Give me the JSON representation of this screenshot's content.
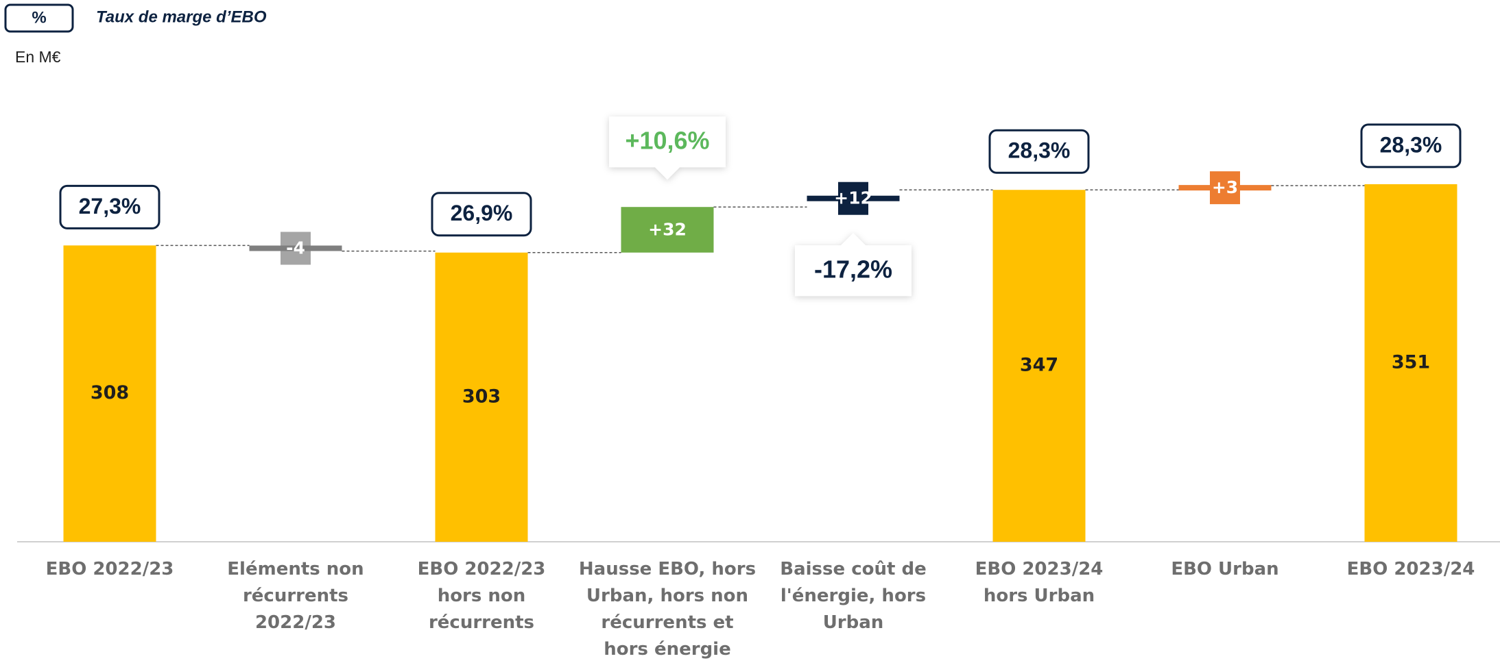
{
  "chart_data": {
    "type": "waterfall",
    "legend_symbol": "%",
    "legend_text": "Taux de marge d’EBO",
    "unit_label": "En M€",
    "categories": [
      "EBO 2022/23",
      "Eléments non récurrents 2022/23",
      "EBO 2022/23 hors non récurrents",
      "Hausse EBO, hors Urban, hors non récurrents et hors énergie",
      "Baisse coût de l'énergie, hors Urban",
      "EBO 2023/24 hors Urban",
      "EBO Urban",
      "EBO 2023/24"
    ],
    "measure": [
      "total",
      "relative",
      "total",
      "relative",
      "relative",
      "total",
      "relative",
      "total"
    ],
    "values": [
      308,
      -4,
      303,
      32,
      12,
      347,
      3,
      351
    ],
    "value_labels": [
      "308",
      "-4",
      "303",
      "+32",
      "+12",
      "347",
      "+3",
      "351"
    ],
    "colors": [
      "#FFC000",
      "#7F7F7F",
      "#FFC000",
      "#70AD47",
      "#0D2240",
      "#FFC000",
      "#ED7D31",
      "#FFC000"
    ],
    "margins": [
      "27,3%",
      null,
      "26,9%",
      null,
      null,
      "28,3%",
      null,
      "28,3%"
    ],
    "callouts": [
      null,
      null,
      null,
      {
        "text": "+10,6%",
        "position": "above",
        "color": "#5CB85C"
      },
      {
        "text": "-17,2%",
        "position": "below",
        "color": "#0D2240"
      },
      null,
      null,
      null
    ],
    "ylim": [
      100,
      400
    ]
  }
}
